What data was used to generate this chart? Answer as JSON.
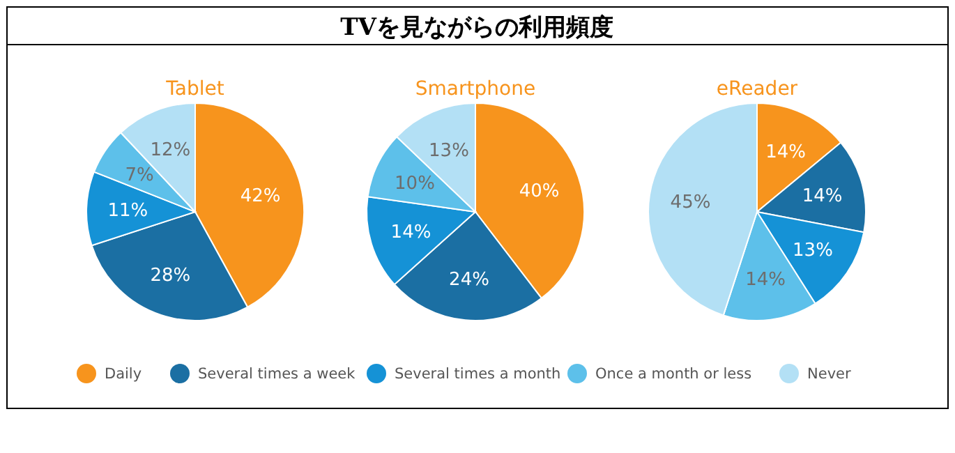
{
  "chart_data": [
    {
      "type": "pie",
      "subtitle": "Tablet",
      "categories": [
        "Daily",
        "Several times a week",
        "Several times a month",
        "Once a month or less",
        "Never"
      ],
      "values": [
        42,
        28,
        11,
        7,
        12
      ],
      "value_labels": [
        "42%",
        "28%",
        "11%",
        "7%",
        "12%"
      ],
      "colors": [
        "#f7941d",
        "#1b6fa3",
        "#1592d6",
        "#5dc0ea",
        "#b3e0f5"
      ],
      "legend": "bottom"
    },
    {
      "type": "pie",
      "title": "TVを見ながらの利用頻度",
      "subtitle": "Smartphone",
      "categories": [
        null,
        null,
        null,
        null,
        null
      ],
      "values": [
        40,
        24,
        14,
        10,
        13
      ],
      "value_labels": [
        "40%",
        "24%",
        "14%",
        "10%",
        "13%"
      ],
      "colors": [
        "#f7941d",
        "#1b6fa3",
        "#1592d6",
        "#5dc0ea",
        "#b3e0f5"
      ]
    },
    {
      "type": "pie",
      "subtitle": "eReader",
      "categories": [
        null,
        null,
        null,
        null,
        null
      ],
      "values": [
        14,
        14,
        13,
        14,
        45
      ],
      "value_labels": [
        "14%",
        "14%",
        "13%",
        "14%",
        "45%"
      ],
      "colors": [
        "#f7941d",
        "#1b6fa3",
        "#1592d6",
        "#5dc0ea",
        "#b3e0f5"
      ]
    }
  ]
}
